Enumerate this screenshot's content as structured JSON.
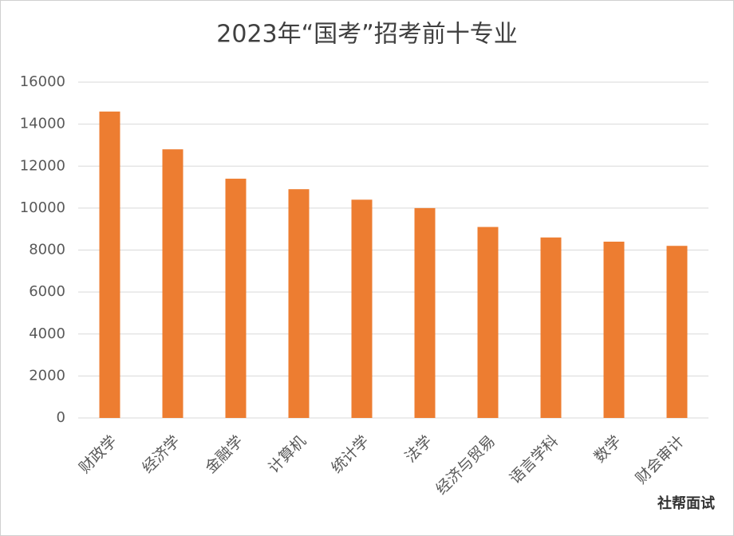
{
  "chart_data": {
    "type": "bar",
    "title": "2023年“国考”招考前十专业",
    "categories": [
      "财政学",
      "经济学",
      "金融学",
      "计算机",
      "统计学",
      "法学",
      "经济与贸易",
      "语言学科",
      "数学",
      "财会审计"
    ],
    "values": [
      14600,
      12800,
      11400,
      10900,
      10400,
      10000,
      9100,
      8600,
      8400,
      8200
    ],
    "color": "#ed7d31",
    "ylim": [
      0,
      16000
    ],
    "yticks": [
      0,
      2000,
      4000,
      6000,
      8000,
      10000,
      12000,
      14000,
      16000
    ],
    "grid": true,
    "watermark": "社帮面试"
  }
}
